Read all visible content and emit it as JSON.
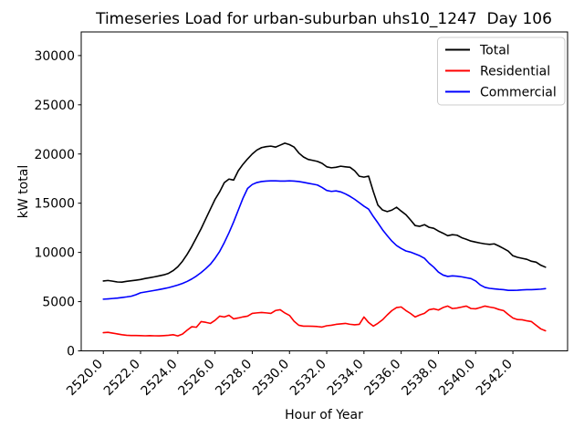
{
  "chart_data": {
    "type": "line",
    "title": "Timeseries Load for urban-suburban uhs10_1247  Day 106",
    "xlabel": "Hour of Year",
    "ylabel": "kW total",
    "xlim": [
      2518.8125,
      2544.9375
    ],
    "ylim": [
      0,
      32400
    ],
    "grid": false,
    "xticks": [
      2520,
      2522,
      2524,
      2526,
      2528,
      2530,
      2532,
      2534,
      2536,
      2538,
      2540,
      2542
    ],
    "xtick_labels": [
      "2520.0",
      "2522.0",
      "2524.0",
      "2526.0",
      "2528.0",
      "2530.0",
      "2532.0",
      "2534.0",
      "2536.0",
      "2538.0",
      "2540.0",
      "2542.0"
    ],
    "yticks": [
      0,
      5000,
      10000,
      15000,
      20000,
      25000,
      30000
    ],
    "ytick_labels": [
      "0",
      "5000",
      "10000",
      "15000",
      "20000",
      "25000",
      "30000"
    ],
    "x_start": 2520.0,
    "x_step": 0.25,
    "legend": {
      "position": "upper right",
      "entries": [
        "Total",
        "Residential",
        "Commercial"
      ]
    },
    "series": [
      {
        "name": "Total",
        "color": "#000000",
        "values": [
          7100,
          7150,
          7080,
          7000,
          6980,
          7060,
          7120,
          7180,
          7250,
          7350,
          7430,
          7520,
          7620,
          7720,
          7870,
          8150,
          8540,
          9100,
          9800,
          10600,
          11500,
          12400,
          13400,
          14400,
          15390,
          16160,
          17090,
          17450,
          17350,
          18300,
          18950,
          19500,
          20000,
          20400,
          20650,
          20750,
          20800,
          20700,
          20900,
          21100,
          20950,
          20700,
          20100,
          19700,
          19450,
          19350,
          19250,
          19050,
          18700,
          18600,
          18650,
          18760,
          18700,
          18650,
          18300,
          17740,
          17650,
          17750,
          16200,
          14800,
          14310,
          14150,
          14300,
          14590,
          14200,
          13840,
          13300,
          12730,
          12650,
          12820,
          12550,
          12450,
          12170,
          11950,
          11700,
          11800,
          11750,
          11500,
          11330,
          11150,
          11050,
          10950,
          10870,
          10820,
          10870,
          10650,
          10400,
          10130,
          9660,
          9500,
          9400,
          9300,
          9100,
          9010,
          8700,
          8500
        ]
      },
      {
        "name": "Residential",
        "color": "#ff0000",
        "values": [
          1850,
          1880,
          1800,
          1720,
          1640,
          1580,
          1560,
          1560,
          1550,
          1530,
          1545,
          1530,
          1525,
          1550,
          1580,
          1640,
          1520,
          1700,
          2100,
          2450,
          2400,
          2970,
          2900,
          2790,
          3100,
          3530,
          3440,
          3620,
          3250,
          3340,
          3450,
          3530,
          3810,
          3860,
          3900,
          3860,
          3810,
          4100,
          4180,
          3850,
          3600,
          3000,
          2600,
          2510,
          2510,
          2500,
          2470,
          2420,
          2550,
          2600,
          2690,
          2740,
          2790,
          2700,
          2650,
          2690,
          3440,
          2880,
          2510,
          2800,
          3160,
          3650,
          4090,
          4400,
          4460,
          4100,
          3800,
          3440,
          3650,
          3810,
          4180,
          4270,
          4150,
          4400,
          4550,
          4300,
          4350,
          4450,
          4550,
          4300,
          4270,
          4400,
          4550,
          4450,
          4370,
          4200,
          4090,
          3700,
          3340,
          3180,
          3160,
          3050,
          2970,
          2600,
          2230,
          2040
        ]
      },
      {
        "name": "Commercial",
        "color": "#0000ff",
        "values": [
          5250,
          5280,
          5320,
          5360,
          5420,
          5480,
          5550,
          5700,
          5900,
          5980,
          6060,
          6140,
          6230,
          6320,
          6420,
          6550,
          6690,
          6850,
          7050,
          7300,
          7600,
          7950,
          8350,
          8800,
          9400,
          10100,
          11000,
          12000,
          13100,
          14300,
          15500,
          16500,
          16900,
          17100,
          17200,
          17250,
          17270,
          17270,
          17250,
          17250,
          17270,
          17250,
          17200,
          17120,
          17030,
          16940,
          16850,
          16600,
          16300,
          16200,
          16250,
          16150,
          15950,
          15700,
          15400,
          15050,
          14700,
          14400,
          13660,
          13000,
          12300,
          11700,
          11150,
          10700,
          10400,
          10150,
          10030,
          9850,
          9660,
          9400,
          8900,
          8500,
          8000,
          7700,
          7560,
          7620,
          7580,
          7520,
          7430,
          7340,
          7100,
          6690,
          6450,
          6350,
          6300,
          6250,
          6220,
          6150,
          6150,
          6160,
          6190,
          6220,
          6220,
          6240,
          6270,
          6320
        ]
      }
    ]
  }
}
